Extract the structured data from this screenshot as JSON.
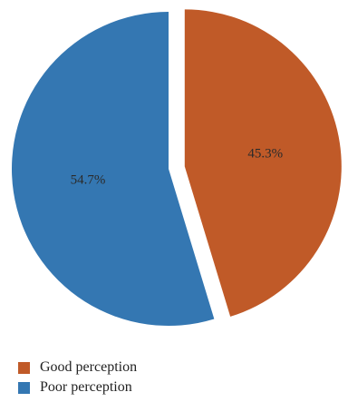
{
  "chart_data": {
    "type": "pie",
    "slices": [
      {
        "label": "Good perception",
        "value": 45.3,
        "display": "45.3%",
        "color": "#c05a28",
        "exploded": true
      },
      {
        "label": "Poor perception",
        "value": 54.7,
        "display": "54.7%",
        "color": "#3477b2",
        "exploded": false
      }
    ],
    "start_angle_deg": 0,
    "direction": "clockwise",
    "legend_position": "bottom-left"
  }
}
